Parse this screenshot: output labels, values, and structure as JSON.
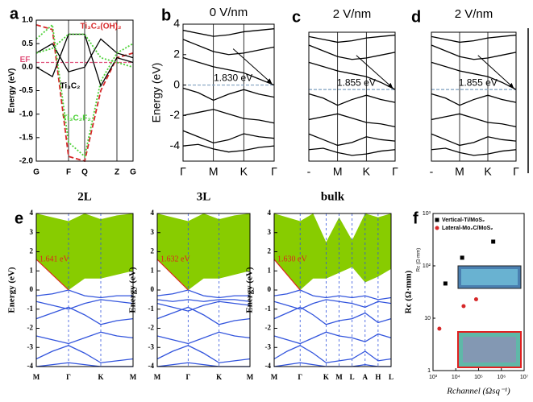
{
  "chart_data": [
    {
      "type": "line",
      "panel_label": "a",
      "ylabel": "Energy (eV)",
      "categories": [
        "G",
        null,
        "F",
        "Q",
        null,
        "Z",
        "G"
      ],
      "ylim": [
        -2,
        1
      ],
      "yticks": [
        {
          "value": -2,
          "label": "-2.0"
        },
        {
          "value": -1.5,
          "label": "-1.5"
        },
        {
          "value": -1,
          "label": "-1.0"
        },
        {
          "value": -0.5,
          "label": "-0.5"
        },
        {
          "value": 0,
          "label": "0.0"
        },
        {
          "value": 0.5,
          "label": "0.5"
        },
        {
          "value": 1,
          "label": "1.0"
        }
      ],
      "hline": {
        "value": 0.1,
        "label": "EF",
        "color": "#e0507a"
      },
      "series": [
        {
          "name": "Ti₃C₂(OH)₂",
          "color": "#d62728",
          "style": "dashed",
          "values": [
            0.9,
            0.8,
            -1.9,
            -2.0,
            -0.5,
            0.2,
            0.3
          ]
        },
        {
          "name": "Ti₃C₂",
          "color": "#000000",
          "style": "solid",
          "values": [
            0.3,
            0.5,
            -0.1,
            0.0,
            0.6,
            0.3,
            0.2
          ]
        },
        {
          "name": "Ti₃C₂F₂",
          "color": "#4cd137",
          "style": "dotted",
          "values": [
            0.6,
            0.9,
            -1.6,
            -1.9,
            -0.3,
            0.3,
            0.5
          ]
        },
        {
          "color": "#000000",
          "style": "solid",
          "values": [
            0.0,
            -0.2,
            0.7,
            0.7,
            -0.4,
            0.2,
            0.1
          ]
        },
        {
          "color": "#4cd137",
          "style": "dotted",
          "values": [
            0.3,
            0.4,
            0.7,
            0.7,
            0.2,
            0.1,
            0.0
          ]
        }
      ]
    },
    {
      "type": "line",
      "panel_label": "b",
      "title": "0 V/nm",
      "ylabel": "Energy (eV)",
      "annotation": "1.830 eV",
      "categories": [
        "Γ",
        null,
        "M",
        null,
        "K",
        null,
        "Γ"
      ],
      "ylim": [
        -5,
        4
      ],
      "yticks": [
        -4,
        -2,
        0,
        2,
        4
      ],
      "hline": {
        "value": 0,
        "color": "#7f9fbf"
      },
      "series": [
        {
          "color": "#000000",
          "style": "solid",
          "values": [
            3.6,
            3.4,
            3.2,
            3.3,
            3.5,
            3.6,
            3.7
          ]
        },
        {
          "color": "#000000",
          "style": "solid",
          "values": [
            3.0,
            2.6,
            2.2,
            2.0,
            2.1,
            2.3,
            2.5
          ]
        },
        {
          "color": "#000000",
          "style": "solid",
          "values": [
            1.8,
            1.5,
            1.2,
            1.0,
            0.8,
            0.4,
            0.0
          ]
        },
        {
          "color": "#000000",
          "style": "solid",
          "values": [
            -0.2,
            -0.5,
            -1.0,
            -0.6,
            -0.3,
            -0.6,
            -0.8
          ]
        },
        {
          "color": "#000000",
          "style": "solid",
          "values": [
            -2.0,
            -1.8,
            -1.6,
            -1.9,
            -2.2,
            -2.3,
            -2.5
          ]
        },
        {
          "color": "#000000",
          "style": "solid",
          "values": [
            -3.0,
            -3.4,
            -3.8,
            -3.6,
            -3.2,
            -3.4,
            -3.5
          ]
        },
        {
          "color": "#000000",
          "style": "solid",
          "values": [
            -4.0,
            -3.9,
            -4.2,
            -4.4,
            -4.3,
            -4.1,
            -4.0
          ]
        }
      ]
    },
    {
      "type": "line",
      "panel_label": "c",
      "title": "2 V/nm",
      "annotation": "1.855 eV",
      "categories": [
        "-",
        null,
        "M",
        null,
        "K",
        null,
        "Γ"
      ],
      "ylim": [
        -5,
        4
      ],
      "hline": {
        "value": 0,
        "color": "#7f9fbf"
      },
      "series": [
        {
          "color": "#000000",
          "style": "solid",
          "values": [
            3.7,
            3.5,
            3.3,
            3.4,
            3.6,
            3.7,
            3.8
          ]
        },
        {
          "color": "#000000",
          "style": "solid",
          "values": [
            3.1,
            2.7,
            2.3,
            2.1,
            2.2,
            2.4,
            2.6
          ]
        },
        {
          "color": "#000000",
          "style": "solid",
          "values": [
            1.9,
            1.6,
            1.3,
            1.1,
            0.9,
            0.5,
            0.0
          ]
        },
        {
          "color": "#000000",
          "style": "solid",
          "values": [
            -0.3,
            -0.6,
            -1.1,
            -0.7,
            -0.4,
            -0.7,
            -0.9
          ]
        },
        {
          "color": "#000000",
          "style": "solid",
          "values": [
            -2.1,
            -1.9,
            -1.7,
            -2.0,
            -2.3,
            -2.4,
            -2.6
          ]
        },
        {
          "color": "#000000",
          "style": "solid",
          "values": [
            -3.1,
            -3.5,
            -3.9,
            -3.7,
            -3.3,
            -3.5,
            -3.6
          ]
        },
        {
          "color": "#000000",
          "style": "solid",
          "values": [
            -4.2,
            -4.1,
            -4.4,
            -4.6,
            -4.5,
            -4.3,
            -4.2
          ]
        }
      ]
    },
    {
      "type": "line",
      "panel_label": "d",
      "title": "2 V/nm",
      "annotation": "1.855 eV",
      "categories": [
        "-",
        null,
        "M",
        null,
        "K",
        null,
        "Γ"
      ],
      "ylim": [
        -5,
        4
      ],
      "hline": {
        "value": 0,
        "color": "#7f9fbf"
      },
      "series": [
        {
          "color": "#000000",
          "style": "solid",
          "values": [
            3.7,
            3.5,
            3.3,
            3.4,
            3.6,
            3.7,
            3.8
          ]
        },
        {
          "color": "#000000",
          "style": "solid",
          "values": [
            3.1,
            2.7,
            2.3,
            2.1,
            2.2,
            2.4,
            2.6
          ]
        },
        {
          "color": "#000000",
          "style": "solid",
          "values": [
            1.9,
            1.6,
            1.3,
            1.1,
            0.9,
            0.5,
            0.0
          ]
        },
        {
          "color": "#000000",
          "style": "solid",
          "values": [
            -0.3,
            -0.6,
            -1.1,
            -0.7,
            -0.4,
            -0.7,
            -0.9
          ]
        },
        {
          "color": "#000000",
          "style": "solid",
          "values": [
            -2.1,
            -1.9,
            -1.7,
            -2.0,
            -2.3,
            -2.4,
            -2.6
          ]
        },
        {
          "color": "#000000",
          "style": "solid",
          "values": [
            -3.1,
            -3.5,
            -3.9,
            -3.7,
            -3.3,
            -3.5,
            -3.6
          ]
        },
        {
          "color": "#000000",
          "style": "solid",
          "values": [
            -4.2,
            -4.1,
            -4.4,
            -4.6,
            -4.5,
            -4.3,
            -4.2
          ]
        }
      ]
    },
    {
      "type": "line",
      "panel_label": "e",
      "title": "2L",
      "ylabel": "Energy (eV)",
      "annotation": "1.641 eV",
      "categories": [
        "M",
        null,
        "Γ",
        null,
        "K",
        null,
        "M"
      ],
      "ylim": [
        -4,
        4
      ],
      "yticks": [
        -4,
        -3,
        -2,
        -1,
        0,
        1,
        2,
        3,
        4
      ],
      "fill": {
        "color": "#88cc00",
        "upper": [
          4,
          3.8,
          3.6,
          4,
          3.7,
          3.9,
          4
        ],
        "lower": [
          1.6,
          0.8,
          0.0,
          0.6,
          0.6,
          0.8,
          1.0
        ]
      },
      "series": [
        {
          "color": "#3355dd",
          "style": "solid",
          "values": [
            -0.3,
            -0.2,
            0.0,
            -0.3,
            -0.4,
            -0.3,
            -0.3
          ]
        },
        {
          "color": "#3355dd",
          "style": "solid",
          "values": [
            -0.6,
            -0.8,
            -1.0,
            -0.7,
            -0.5,
            -0.6,
            -0.7
          ]
        },
        {
          "color": "#3355dd",
          "style": "solid",
          "values": [
            -1.5,
            -1.2,
            -0.9,
            -1.3,
            -1.8,
            -1.6,
            -1.5
          ]
        },
        {
          "color": "#3355dd",
          "style": "solid",
          "values": [
            -2.4,
            -2.6,
            -2.8,
            -2.5,
            -2.2,
            -2.4,
            -2.5
          ]
        },
        {
          "color": "#3355dd",
          "style": "solid",
          "values": [
            -3.6,
            -3.2,
            -2.9,
            -3.3,
            -3.8,
            -3.7,
            -3.6
          ]
        },
        {
          "color": "#3355dd",
          "style": "solid",
          "values": [
            -4.0,
            -3.9,
            -3.8,
            -3.9,
            -4.0,
            -4.0,
            -4.0
          ]
        }
      ]
    },
    {
      "type": "line",
      "title": "3L",
      "ylabel": "Energy (eV)",
      "annotation": "1.632 eV",
      "categories": [
        "M",
        null,
        "Γ",
        null,
        "K",
        null,
        "M"
      ],
      "ylim": [
        -4,
        4
      ],
      "yticks": [
        -4,
        -3,
        -2,
        -1,
        0,
        1,
        2,
        3,
        4
      ],
      "fill": {
        "color": "#88cc00",
        "upper": [
          4,
          3.8,
          3.6,
          4,
          3.7,
          3.9,
          4
        ],
        "lower": [
          1.6,
          0.8,
          0.0,
          0.6,
          0.6,
          0.8,
          1.0
        ]
      },
      "series": [
        {
          "color": "#3355dd",
          "style": "solid",
          "values": [
            -0.3,
            -0.2,
            0.0,
            -0.3,
            -0.4,
            -0.3,
            -0.3
          ]
        },
        {
          "color": "#3355dd",
          "style": "solid",
          "values": [
            -0.5,
            -0.6,
            -0.5,
            -0.6,
            -0.5,
            -0.5,
            -0.6
          ]
        },
        {
          "color": "#3355dd",
          "style": "solid",
          "values": [
            -0.7,
            -0.9,
            -1.1,
            -0.8,
            -0.6,
            -0.7,
            -0.8
          ]
        },
        {
          "color": "#3355dd",
          "style": "solid",
          "values": [
            -1.5,
            -1.2,
            -0.9,
            -1.3,
            -1.8,
            -1.6,
            -1.5
          ]
        },
        {
          "color": "#3355dd",
          "style": "solid",
          "values": [
            -2.4,
            -2.6,
            -2.8,
            -2.5,
            -2.2,
            -2.4,
            -2.5
          ]
        },
        {
          "color": "#3355dd",
          "style": "solid",
          "values": [
            -3.6,
            -3.2,
            -2.9,
            -3.3,
            -3.8,
            -3.7,
            -3.6
          ]
        },
        {
          "color": "#3355dd",
          "style": "solid",
          "values": [
            -4.0,
            -3.9,
            -3.8,
            -3.9,
            -4.0,
            -4.0,
            -4.0
          ]
        }
      ]
    },
    {
      "type": "line",
      "title": "bulk",
      "ylabel": "Energy (eV)",
      "annotation": "1.630 eV",
      "categories": [
        "M",
        null,
        "Γ",
        null,
        "K",
        "M",
        "L",
        "A",
        "H",
        "L"
      ],
      "ylim": [
        -4,
        4
      ],
      "yticks": [
        -4,
        -3,
        -2,
        -1,
        0,
        1,
        2,
        3,
        4
      ],
      "fill": {
        "color": "#88cc00",
        "upper": [
          4,
          3.8,
          3.6,
          4,
          2.5,
          3.8,
          2.6,
          4,
          3.8,
          4
        ],
        "lower": [
          1.6,
          0.8,
          0.0,
          0.6,
          0.6,
          0.9,
          1.2,
          0.4,
          0.7,
          1.1
        ]
      },
      "series": [
        {
          "color": "#3355dd",
          "style": "solid",
          "values": [
            -0.3,
            -0.2,
            0.0,
            -0.3,
            -0.4,
            -0.3,
            -0.4,
            -0.3,
            -0.5,
            -0.4
          ]
        },
        {
          "color": "#3355dd",
          "style": "solid",
          "values": [
            -0.6,
            -0.8,
            -1.0,
            -0.7,
            -0.5,
            -0.6,
            -0.7,
            -0.9,
            -0.6,
            -0.7
          ]
        },
        {
          "color": "#3355dd",
          "style": "solid",
          "values": [
            -1.5,
            -1.2,
            -0.9,
            -1.3,
            -1.8,
            -1.6,
            -1.5,
            -1.2,
            -1.7,
            -1.5
          ]
        },
        {
          "color": "#3355dd",
          "style": "solid",
          "values": [
            -2.4,
            -2.6,
            -2.8,
            -2.5,
            -2.2,
            -2.4,
            -2.5,
            -2.7,
            -2.3,
            -2.5
          ]
        },
        {
          "color": "#3355dd",
          "style": "solid",
          "values": [
            -3.6,
            -3.2,
            -2.9,
            -3.3,
            -3.8,
            -3.7,
            -3.6,
            -3.2,
            -3.7,
            -3.6
          ]
        },
        {
          "color": "#3355dd",
          "style": "solid",
          "values": [
            -4.0,
            -3.9,
            -3.8,
            -3.9,
            -4.0,
            -4.0,
            -4.0,
            -3.9,
            -4.0,
            -4.0
          ]
        }
      ]
    },
    {
      "type": "scatter",
      "panel_label": "f",
      "xlabel": "Rchannel (Ωsq⁻¹)",
      "ylabel": "Rc (Ω·mm)",
      "xscale": "log",
      "yscale": "log",
      "legend": "upper left",
      "xlim": [
        1000,
        10000000
      ],
      "ylim": [
        1,
        1000
      ],
      "xticks": [
        {
          "value": 1000,
          "label": "10³"
        },
        {
          "value": 10000,
          "label": "10⁴"
        },
        {
          "value": 100000,
          "label": "10⁵"
        },
        {
          "value": 1000000,
          "label": "10⁶"
        },
        {
          "value": 10000000,
          "label": "10⁷"
        }
      ],
      "yticks": [
        1,
        10,
        {
          "value": 100,
          "label": "10²"
        },
        {
          "value": 1000,
          "label": "10³"
        }
      ],
      "series": [
        {
          "name": "Vertical-Ti/MoS₂",
          "color": "#000000",
          "marker": "square",
          "x": [
            3500,
            19000,
            440000
          ],
          "values": [
            46,
            143,
            290
          ]
        },
        {
          "name": "Lateral-Mo₂C/MoS₂",
          "color": "#d62728",
          "marker": "circle",
          "x": [
            1900,
            22000,
            78000
          ],
          "values": [
            6.3,
            17,
            23
          ]
        }
      ]
    }
  ]
}
